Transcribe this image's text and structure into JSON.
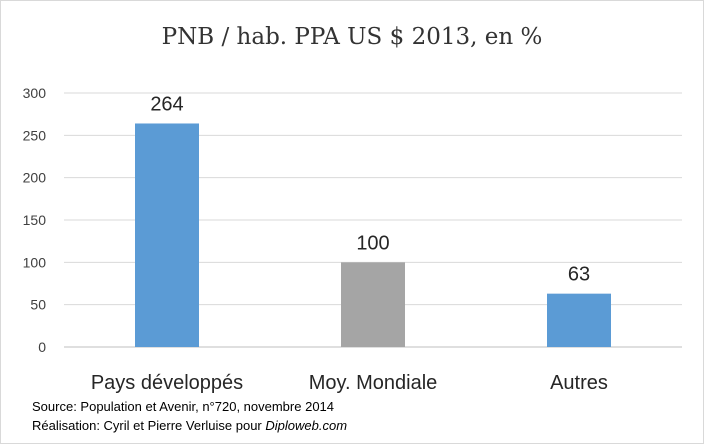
{
  "chart_data": {
    "type": "bar",
    "title": "PNB / hab. PPA US $ 2013, en %",
    "categories": [
      "Pays développés",
      "Moy. Mondiale",
      "Autres"
    ],
    "values": [
      264,
      100,
      63
    ],
    "bar_colors": [
      "#5b9bd5",
      "#a5a5a5",
      "#5b9bd5"
    ],
    "ylim": [
      0,
      300
    ],
    "yticks": [
      0,
      50,
      100,
      150,
      200,
      250,
      300
    ],
    "grid": true,
    "legend": "none"
  },
  "footer": {
    "source": "Source: Population et Avenir, n°720, novembre 2014",
    "credit_prefix": "Réalisation: Cyril et Pierre Verluise pour ",
    "credit_site": "Diploweb.com"
  }
}
